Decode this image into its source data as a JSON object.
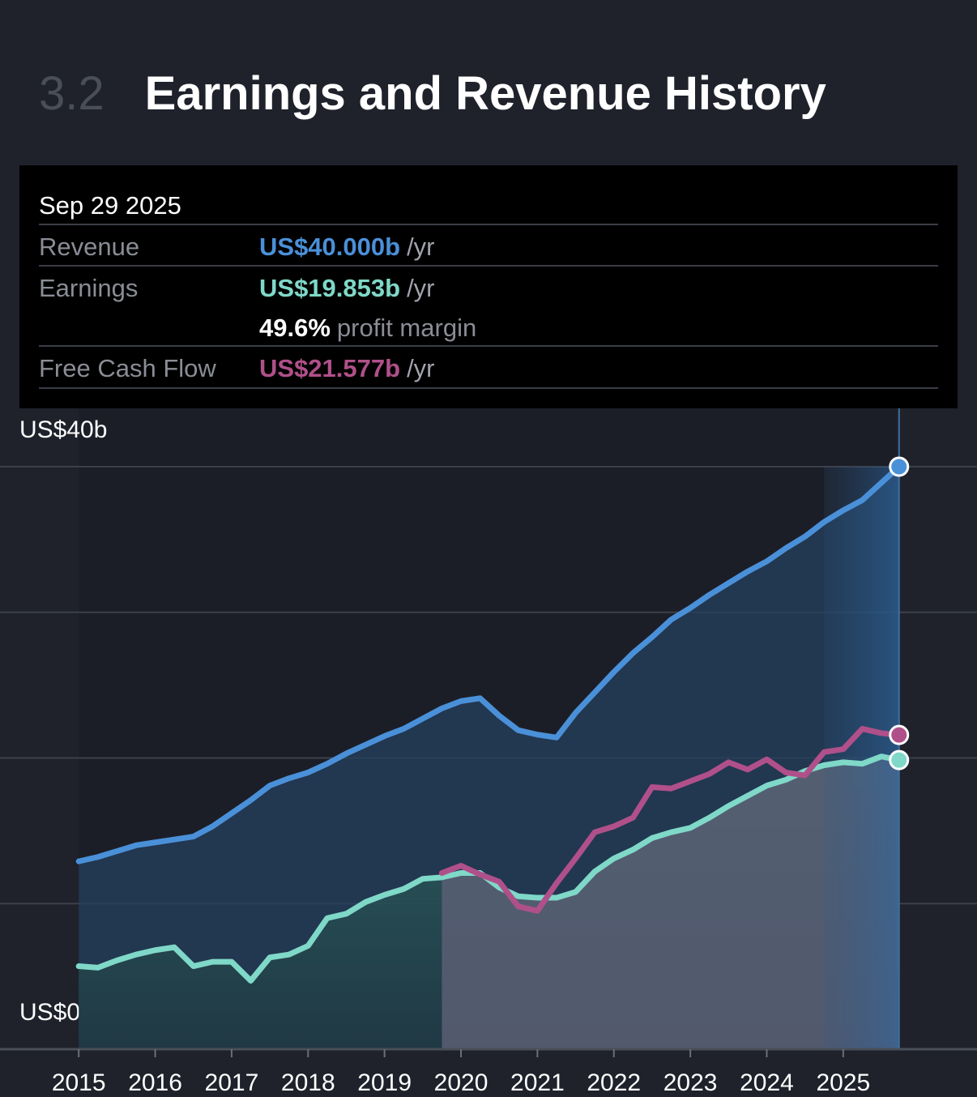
{
  "header": {
    "number": "3.2",
    "title": "Earnings and Revenue History"
  },
  "tooltip": {
    "date": "Sep 29 2025",
    "rows": [
      {
        "value": "US$40.000b",
        "unit": "/yr"
      },
      {
        "value": "US$19.853b",
        "unit": "/yr"
      },
      {
        "value": "US$21.577b",
        "unit": "/yr"
      }
    ],
    "margin": "49.6%",
    "margin_label": "profit margin"
  },
  "chart_data": {
    "type": "area-line",
    "x": [
      2015.0,
      2015.25,
      2015.5,
      2015.75,
      2016.0,
      2016.25,
      2016.5,
      2016.75,
      2017.0,
      2017.25,
      2017.5,
      2017.75,
      2018.0,
      2018.25,
      2018.5,
      2018.75,
      2019.0,
      2019.25,
      2019.5,
      2019.75,
      2020.0,
      2020.25,
      2020.5,
      2020.75,
      2021.0,
      2021.25,
      2021.5,
      2021.75,
      2022.0,
      2022.25,
      2022.5,
      2022.75,
      2023.0,
      2023.25,
      2023.5,
      2023.75,
      2024.0,
      2024.25,
      2024.5,
      2024.75,
      2025.0,
      2025.25,
      2025.5,
      2025.73
    ],
    "series": [
      {
        "name": "Revenue",
        "color": "#4a90d9",
        "values": [
          12.9,
          13.2,
          13.6,
          14.0,
          14.2,
          14.4,
          14.6,
          15.3,
          16.2,
          17.1,
          18.1,
          18.6,
          19.0,
          19.6,
          20.3,
          20.9,
          21.5,
          22.0,
          22.7,
          23.4,
          23.9,
          24.1,
          22.9,
          21.9,
          21.6,
          21.4,
          23.1,
          24.5,
          25.9,
          27.2,
          28.3,
          29.5,
          30.3,
          31.2,
          32.0,
          32.8,
          33.5,
          34.4,
          35.2,
          36.2,
          37.0,
          37.7,
          38.9,
          40.0
        ]
      },
      {
        "name": "Earnings",
        "color": "#7fd8c8",
        "values": [
          5.7,
          5.6,
          6.1,
          6.5,
          6.8,
          7.0,
          5.7,
          6.0,
          6.0,
          4.7,
          6.3,
          6.5,
          7.1,
          9.0,
          9.3,
          10.1,
          10.6,
          11.0,
          11.7,
          11.8,
          12.1,
          12.1,
          11.1,
          10.5,
          10.4,
          10.4,
          10.8,
          12.2,
          13.1,
          13.7,
          14.5,
          14.9,
          15.2,
          15.9,
          16.7,
          17.4,
          18.1,
          18.5,
          19.1,
          19.5,
          19.7,
          19.6,
          20.1,
          19.853
        ]
      },
      {
        "name": "Free Cash Flow",
        "color": "#b0508a",
        "values": [
          null,
          null,
          null,
          null,
          null,
          null,
          null,
          null,
          null,
          null,
          null,
          null,
          null,
          null,
          null,
          null,
          null,
          null,
          null,
          12.1,
          12.6,
          12.0,
          11.5,
          9.8,
          9.5,
          11.4,
          13.1,
          14.9,
          15.3,
          15.9,
          18.0,
          17.9,
          18.4,
          18.9,
          19.7,
          19.2,
          19.9,
          19.0,
          18.8,
          20.4,
          20.6,
          22.0,
          21.7,
          21.577
        ]
      }
    ],
    "xlim": [
      2013.97,
      2026.75
    ],
    "xticks": [
      2015,
      2016,
      2017,
      2018,
      2019,
      2020,
      2021,
      2022,
      2023,
      2024,
      2025
    ],
    "ylim": [
      0,
      40
    ],
    "yticks": [
      {
        "value": 0,
        "label": "US$0"
      },
      {
        "value": 10,
        "label": null
      },
      {
        "value": 20,
        "label": null
      },
      {
        "value": 30,
        "label": null
      },
      {
        "value": 40,
        "label": "US$40b"
      }
    ],
    "grid": true
  }
}
